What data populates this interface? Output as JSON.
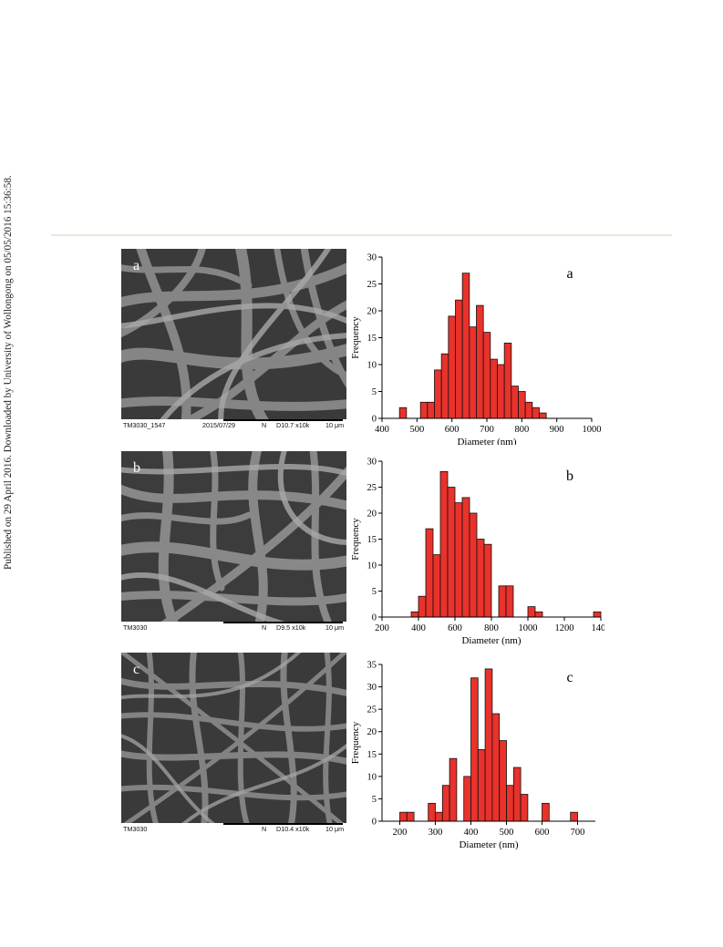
{
  "side_note": "Published on 29 April 2016. Downloaded by University of Wollongong on 05/05/2016 15:36:58.",
  "sem_panels": [
    {
      "letter": "a",
      "label_left": "TM3030_1547",
      "date": "2015/07/29",
      "mode": "N",
      "params": "D10.7 x10k",
      "scale": "10 μm"
    },
    {
      "letter": "b",
      "label_left": "TM3030",
      "date": "",
      "mode": "N",
      "params": "D9.5  x10k",
      "scale": "10 μm"
    },
    {
      "letter": "c",
      "label_left": "TM3030",
      "date": "",
      "mode": "N",
      "params": "D10.4 x10k",
      "scale": "10 μm"
    }
  ],
  "chart_data": [
    {
      "type": "bar",
      "panel_label": "a",
      "xlabel": "Diameter (nm)",
      "ylabel": "Frequency",
      "xlim": [
        400,
        1000
      ],
      "ylim": [
        0,
        30
      ],
      "xticks": [
        400,
        500,
        600,
        700,
        800,
        900,
        1000
      ],
      "yticks": [
        0,
        5,
        10,
        15,
        20,
        25,
        30
      ],
      "bin_width": 20,
      "color": "#e8322b",
      "x": [
        460,
        500,
        520,
        540,
        560,
        580,
        600,
        620,
        640,
        660,
        680,
        700,
        720,
        740,
        760,
        780,
        800,
        820,
        840,
        860,
        880,
        900
      ],
      "values": [
        2,
        0,
        3,
        3,
        9,
        12,
        19,
        22,
        27,
        17,
        21,
        16,
        11,
        10,
        14,
        6,
        5,
        3,
        2,
        1,
        0,
        0
      ]
    },
    {
      "type": "bar",
      "panel_label": "b",
      "xlabel": "Diameter (nm)",
      "ylabel": "Frequency",
      "xlim": [
        200,
        1400
      ],
      "ylim": [
        0,
        30
      ],
      "xticks": [
        200,
        400,
        600,
        800,
        1000,
        1200,
        1400
      ],
      "yticks": [
        0,
        5,
        10,
        15,
        20,
        25,
        30
      ],
      "bin_width": 40,
      "color": "#e8322b",
      "x": [
        380,
        420,
        460,
        500,
        540,
        580,
        620,
        660,
        700,
        740,
        780,
        820,
        860,
        900,
        940,
        980,
        1020,
        1060,
        1100,
        1140,
        1380
      ],
      "values": [
        1,
        4,
        17,
        12,
        28,
        25,
        22,
        23,
        20,
        15,
        14,
        0,
        6,
        6,
        0,
        0,
        2,
        1,
        0,
        0,
        1
      ]
    },
    {
      "type": "bar",
      "panel_label": "c",
      "xlabel": "Diameter (nm)",
      "ylabel": "Frequency",
      "xlim": [
        150,
        750
      ],
      "ylim": [
        0,
        35
      ],
      "xticks": [
        200,
        300,
        400,
        500,
        600,
        700
      ],
      "yticks": [
        0,
        5,
        10,
        15,
        20,
        25,
        30,
        35
      ],
      "bin_width": 20,
      "color": "#e8322b",
      "x": [
        210,
        230,
        290,
        310,
        330,
        350,
        390,
        410,
        430,
        450,
        470,
        490,
        510,
        530,
        550,
        570,
        610,
        630,
        650,
        690
      ],
      "values": [
        2,
        2,
        4,
        2,
        8,
        14,
        10,
        32,
        16,
        34,
        24,
        18,
        8,
        12,
        6,
        0,
        4,
        0,
        0,
        2
      ]
    }
  ]
}
